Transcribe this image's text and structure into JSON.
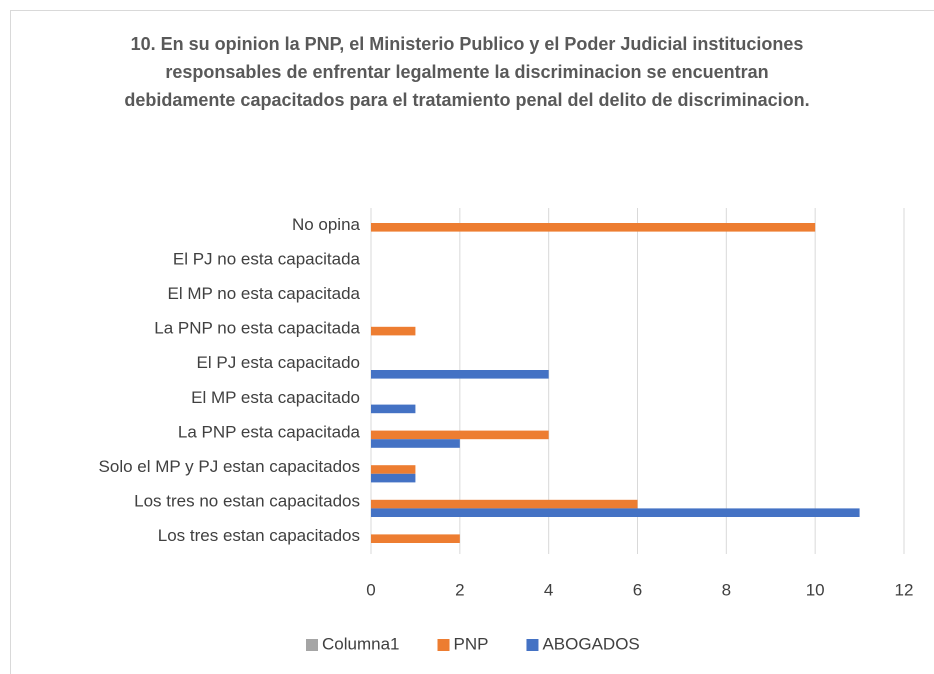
{
  "chart_data": {
    "type": "barh",
    "title": "10. En su opinion la PNP, el Ministerio Publico y el Poder Judicial instituciones responsables de enfrentar legalmente la discriminacion se encuentran debidamente capacitados para el tratamiento penal del delito de discriminacion.",
    "categories": [
      "Los tres estan capacitados",
      "Los tres no estan capacitados",
      "Solo el MP y PJ estan capacitados",
      "La PNP esta capacitada",
      "El MP esta capacitado",
      "El PJ esta capacitado",
      "La PNP no esta capacitada",
      "El MP no esta capacitada",
      "El PJ no esta capacitada",
      "No opina"
    ],
    "series": [
      {
        "name": "Columna1",
        "color": "#a5a5a5",
        "values": [
          null,
          null,
          null,
          null,
          null,
          null,
          null,
          null,
          null,
          null
        ]
      },
      {
        "name": "PNP",
        "color": "#ed7d31",
        "values": [
          2,
          6,
          1,
          4,
          null,
          null,
          1,
          null,
          null,
          10
        ]
      },
      {
        "name": "ABOGADOS",
        "color": "#4472c4",
        "values": [
          null,
          11,
          1,
          2,
          1,
          4,
          null,
          null,
          null,
          null
        ]
      }
    ],
    "xlim": [
      0,
      12
    ],
    "xticks": [
      0,
      2,
      4,
      6,
      8,
      10,
      12
    ],
    "grid": true,
    "legend": "bottom"
  }
}
